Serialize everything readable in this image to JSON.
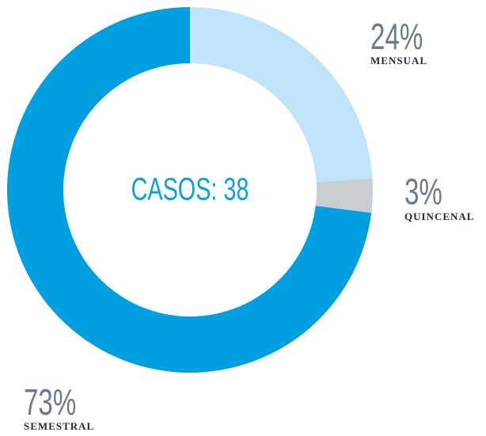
{
  "chart_data": {
    "type": "donut",
    "center_label": "CASOS: 38",
    "categories": [
      "MENSUAL",
      "QUINCENAL",
      "SEMESTRAL"
    ],
    "values": [
      24,
      3,
      73
    ],
    "value_labels": [
      "24%",
      "3%",
      "73%"
    ],
    "colors": [
      "#bfe4f9",
      "#c9ced3",
      "#009fe0"
    ]
  }
}
